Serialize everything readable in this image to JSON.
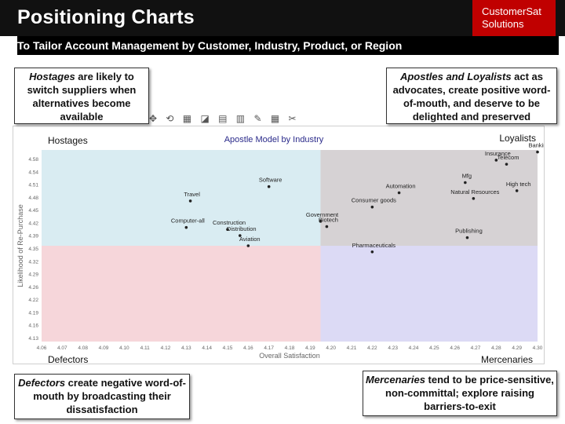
{
  "header": {
    "title": "Positioning Charts",
    "logo_line1": "CustomerSat",
    "logo_line2": "Solutions"
  },
  "subtitle": "To Tailor Account Management by Customer, Industry, Product, or Region",
  "callouts": {
    "hostages": {
      "em": "Hostages",
      "text": " are likely to switch suppliers when alternatives become available"
    },
    "apostles": {
      "em": "Apostles and Loyalists",
      "text": " act as advocates, create positive word-of-mouth, and deserve to be delighted and preserved"
    },
    "defectors": {
      "em": "Defectors",
      "text": " create negative word-of-mouth by broadcasting their dissatisfaction"
    },
    "mercenaries": {
      "em": "Mercenaries",
      "text": " tend to be price-sensitive, non-committal; explore raising barriers-to-exit"
    }
  },
  "toolbar_glyphs": "✥ ⟲ ▦ ◪ ▤ ▥ ✎ ▦ ✂",
  "chart_data": {
    "type": "scatter",
    "title": "Apostle Model by Industry",
    "xlabel": "Overall Satisfaction",
    "ylabel": "Likelihood of Re-Purchase",
    "xlim": [
      4.06,
      4.3
    ],
    "ylim": [
      4.13,
      4.6
    ],
    "x_ticks": [
      "4.06",
      "4.07",
      "4.08",
      "4.09",
      "4.10",
      "4.11",
      "4.12",
      "4.13",
      "4.14",
      "4.15",
      "4.16",
      "4.17",
      "4.18",
      "4.19",
      "4.20",
      "4.21",
      "4.22",
      "4.23",
      "4.24",
      "4.25",
      "4.26",
      "4.27",
      "4.28",
      "4.29",
      "4.30"
    ],
    "y_ticks": [
      "4.58",
      "4.54",
      "4.51",
      "4.48",
      "4.45",
      "4.42",
      "4.39",
      "4.35",
      "4.32",
      "4.29",
      "4.26",
      "4.22",
      "4.19",
      "4.16",
      "4.13"
    ],
    "split": {
      "x": 4.195,
      "y": 4.365
    },
    "quadrant_labels": {
      "top_left": "Hostages",
      "top_right": "Loyalists",
      "bottom_left": "Defectors",
      "bottom_right": "Mercenaries"
    },
    "quadrant_colors": {
      "top_left": "#d9ecf2",
      "top_right": "#d6d2d4",
      "bottom_left": "#f6d6da",
      "bottom_right": "#dcdaf5"
    },
    "points": [
      {
        "name": "Banking",
        "x": 4.3,
        "y": 4.595
      },
      {
        "name": "Insurance",
        "x": 4.28,
        "y": 4.575
      },
      {
        "name": "Telecom",
        "x": 4.285,
        "y": 4.565
      },
      {
        "name": "Mfg",
        "x": 4.265,
        "y": 4.52
      },
      {
        "name": "High tech",
        "x": 4.29,
        "y": 4.5
      },
      {
        "name": "Software",
        "x": 4.17,
        "y": 4.51
      },
      {
        "name": "Travel",
        "x": 4.132,
        "y": 4.475
      },
      {
        "name": "Automation",
        "x": 4.233,
        "y": 4.495
      },
      {
        "name": "Natural Resources",
        "x": 4.269,
        "y": 4.481
      },
      {
        "name": "Consumer goods",
        "x": 4.22,
        "y": 4.46
      },
      {
        "name": "Government",
        "x": 4.195,
        "y": 4.425
      },
      {
        "name": "Computer-all",
        "x": 4.13,
        "y": 4.41
      },
      {
        "name": "Construction",
        "x": 4.15,
        "y": 4.405
      },
      {
        "name": "Biotech",
        "x": 4.198,
        "y": 4.412
      },
      {
        "name": "Distribution",
        "x": 4.156,
        "y": 4.39
      },
      {
        "name": "Publishing",
        "x": 4.266,
        "y": 4.385
      },
      {
        "name": "Aviation",
        "x": 4.16,
        "y": 4.365
      },
      {
        "name": "Pharmaceuticals",
        "x": 4.22,
        "y": 4.35
      }
    ]
  }
}
